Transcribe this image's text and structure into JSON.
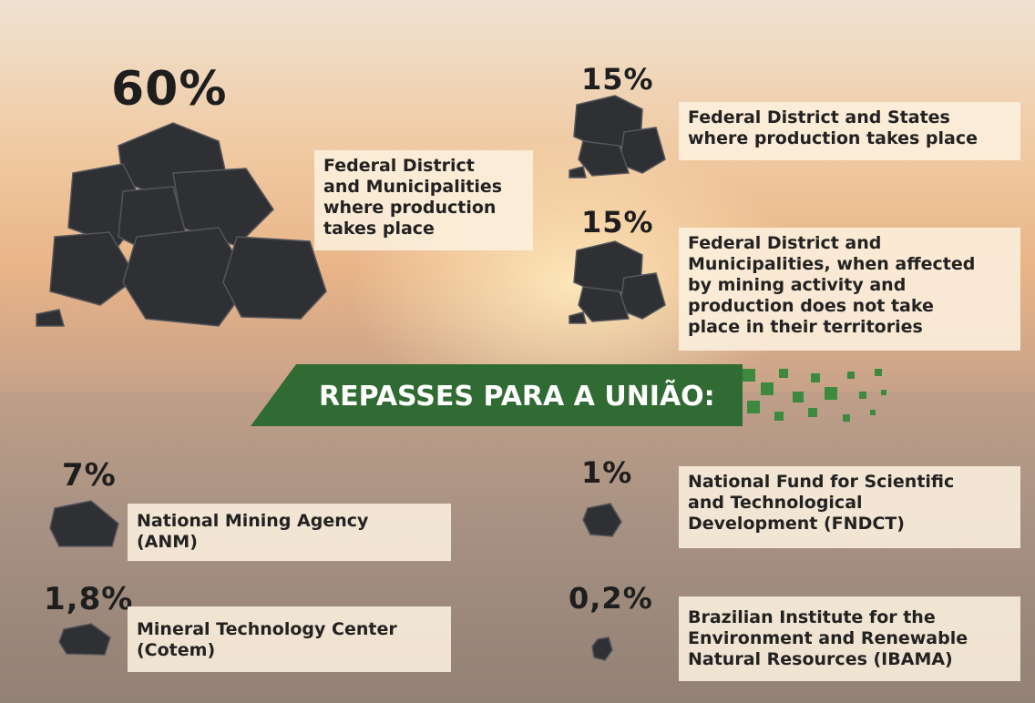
{
  "banner": "REPASSES PARA A UNIÃO:",
  "items": [
    {
      "percent": "60%",
      "lines": [
        "Federal District",
        "and Municipalities",
        "where production",
        "takes place"
      ]
    },
    {
      "percent": "15%",
      "lines": [
        "Federal District and States",
        "where production takes place"
      ]
    },
    {
      "percent": "15%",
      "lines": [
        "Federal District and",
        "Municipalities, when affected",
        "by mining activity and",
        "production does not take",
        "place in their territories"
      ]
    },
    {
      "percent": "7%",
      "lines": [
        "National Mining Agency",
        "(ANM)"
      ]
    },
    {
      "percent": "1%",
      "lines": [
        "National Fund for Scientific",
        "and Technological",
        "Development (FNDCT)"
      ]
    },
    {
      "percent": "1,8%",
      "lines": [
        "Mineral Technology Center",
        "(Cotem)"
      ]
    },
    {
      "percent": "0,2%",
      "lines": [
        "Brazilian Institute for the",
        "Environment and Renewable",
        "Natural Resources (IBAMA)"
      ]
    }
  ]
}
